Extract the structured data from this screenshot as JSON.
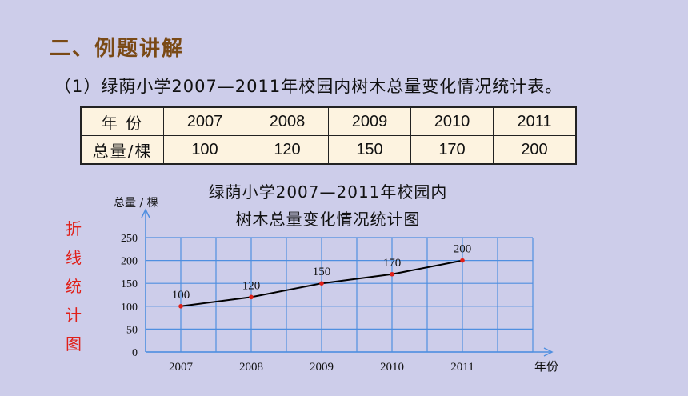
{
  "section_title": "二、例题讲解",
  "example_text": "（1）绿荫小学2007—2011年校园内树木总量变化情况统计表。",
  "table": {
    "row_headers": [
      "年  份",
      "总量/棵"
    ],
    "years": [
      "2007",
      "2008",
      "2009",
      "2010",
      "2011"
    ],
    "totals": [
      "100",
      "120",
      "150",
      "170",
      "200"
    ]
  },
  "side_label": "折线统计图",
  "chart_data": {
    "type": "line",
    "title_line1": "绿荫小学2007—2011年校园内",
    "title_line2": "树木总量变化情况统计图",
    "ylabel": "总量 / 棵",
    "xlabel": "年份",
    "categories": [
      "2007",
      "2008",
      "2009",
      "2010",
      "2011"
    ],
    "values": [
      100,
      120,
      150,
      170,
      200
    ],
    "yticks": [
      0,
      50,
      100,
      150,
      200,
      250
    ],
    "ylim": [
      0,
      250
    ],
    "grid": true,
    "line_color": "#000000",
    "point_color": "#e0201a",
    "grid_color": "#4f8fe0"
  }
}
